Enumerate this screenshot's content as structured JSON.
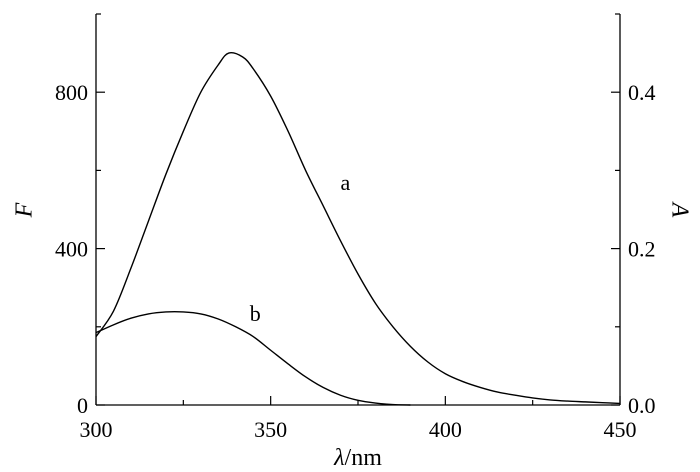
{
  "chart_data": {
    "type": "line",
    "xlabel": {
      "symbol": "λ",
      "unit": "/nm"
    },
    "ylabel_left": "F",
    "ylabel_right": "A",
    "xlim": [
      300,
      450
    ],
    "ylim_left": [
      0,
      1000
    ],
    "ylim_right": [
      0,
      0.5
    ],
    "x_ticks": [
      300,
      350,
      400,
      450
    ],
    "x_tick_labels": [
      "300",
      "350",
      "400",
      "450"
    ],
    "y_left_ticks": [
      0,
      400,
      800
    ],
    "y_left_tick_labels": [
      "0",
      "400",
      "800"
    ],
    "y_right_ticks": [
      0,
      0.2,
      0.4
    ],
    "y_right_tick_labels": [
      "0.0",
      "0.2",
      "0.4"
    ],
    "grid": false,
    "series": [
      {
        "name": "a",
        "axis": "left",
        "x": [
          300,
          305,
          310,
          315,
          320,
          325,
          330,
          335,
          338,
          342,
          345,
          350,
          355,
          360,
          365,
          370,
          375,
          380,
          385,
          390,
          395,
          400,
          405,
          410,
          415,
          420,
          425,
          430,
          435,
          440,
          445,
          450
        ],
        "y": [
          175,
          240,
          350,
          470,
          590,
          700,
          800,
          870,
          900,
          890,
          860,
          790,
          700,
          600,
          510,
          420,
          335,
          260,
          200,
          150,
          110,
          80,
          60,
          45,
          33,
          25,
          18,
          13,
          10,
          8,
          6,
          4
        ]
      },
      {
        "name": "b",
        "axis": "left",
        "x": [
          300,
          305,
          310,
          315,
          320,
          325,
          330,
          335,
          340,
          345,
          350,
          355,
          360,
          365,
          370,
          375,
          380,
          385,
          390
        ],
        "y": [
          185,
          205,
          222,
          233,
          238,
          238,
          233,
          220,
          200,
          175,
          140,
          105,
          72,
          45,
          25,
          12,
          5,
          1,
          0
        ]
      }
    ],
    "labels": [
      {
        "text": "a",
        "x": 370,
        "y": 550
      },
      {
        "text": "b",
        "x": 344,
        "y": 215
      }
    ]
  }
}
